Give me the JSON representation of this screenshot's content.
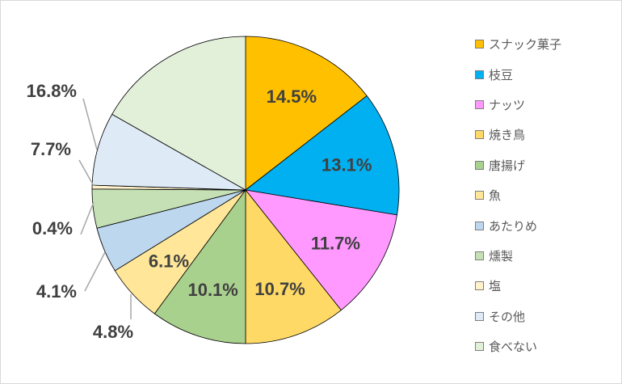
{
  "chart_data": {
    "type": "pie",
    "title": "",
    "legend_position": "right",
    "slices": [
      {
        "label": "スナック菓子",
        "value": 14.5,
        "display": "14.5%",
        "color": "#FFC000"
      },
      {
        "label": "枝豆",
        "value": 13.1,
        "display": "13.1%",
        "color": "#00B0F0"
      },
      {
        "label": "ナッツ",
        "value": 11.7,
        "display": "11.7%",
        "color": "#FF99FF"
      },
      {
        "label": "焼き鳥",
        "value": 10.7,
        "display": "10.7%",
        "color": "#FFD966"
      },
      {
        "label": "唐揚げ",
        "value": 10.1,
        "display": "10.1%",
        "color": "#A9D18E"
      },
      {
        "label": "魚",
        "value": 6.1,
        "display": "6.1%",
        "color": "#FFE699"
      },
      {
        "label": "あたりめ",
        "value": 4.8,
        "display": "4.8%",
        "color": "#BDD7EE"
      },
      {
        "label": "燻製",
        "value": 4.1,
        "display": "4.1%",
        "color": "#C5E0B4"
      },
      {
        "label": "塩",
        "value": 0.4,
        "display": "0.4%",
        "color": "#FFF2CC"
      },
      {
        "label": "その他",
        "value": 7.7,
        "display": "7.7%",
        "color": "#DEEBF7"
      },
      {
        "label": "食べない",
        "value": 16.8,
        "display": "16.8%",
        "color": "#E2F0D9"
      }
    ]
  }
}
